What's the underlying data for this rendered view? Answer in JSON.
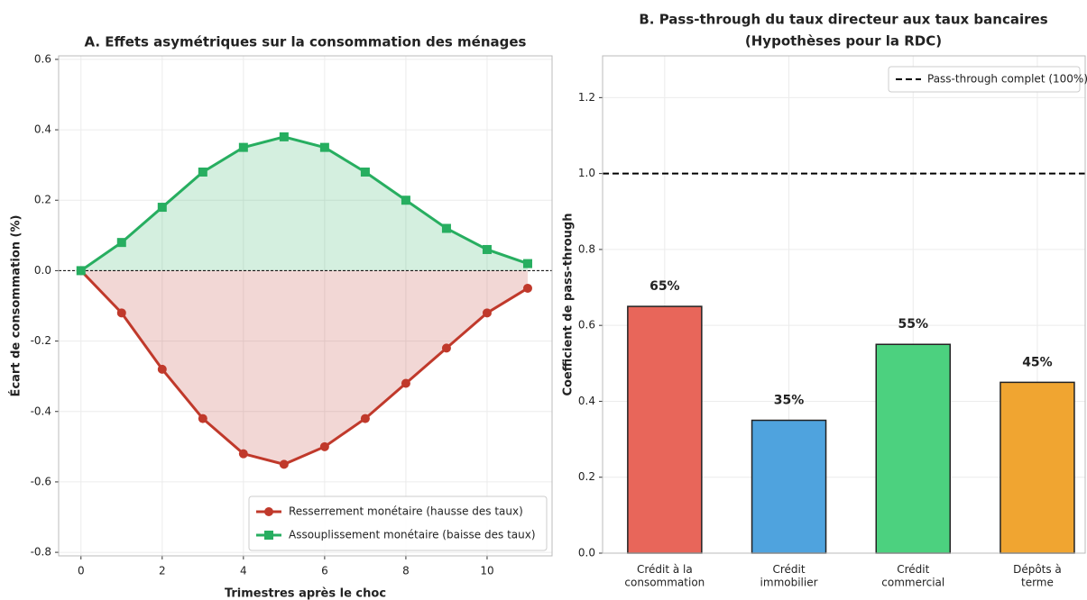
{
  "chart_data": [
    {
      "type": "line",
      "title": "A. Effets asymétriques sur la consommation des ménages",
      "x_label": "Trimestres après le choc",
      "y_label": "Écart de consommation (%)",
      "x": [
        0,
        1,
        2,
        3,
        4,
        5,
        6,
        7,
        8,
        9,
        10,
        11
      ],
      "series": [
        {
          "name": "Resserrement monétaire (hausse des taux)",
          "color": "#c0392b",
          "marker": "circle",
          "values": [
            0,
            -0.12,
            -0.28,
            -0.42,
            -0.52,
            -0.55,
            -0.5,
            -0.42,
            -0.32,
            -0.22,
            -0.12,
            -0.05
          ]
        },
        {
          "name": "Assouplissement monétaire (baisse des taux)",
          "color": "#27ae60",
          "marker": "square",
          "values": [
            0,
            0.08,
            0.18,
            0.28,
            0.35,
            0.38,
            0.35,
            0.28,
            0.2,
            0.12,
            0.06,
            0.02
          ]
        }
      ],
      "xlim": [
        -0.55,
        11.6
      ],
      "xticks": [
        0,
        2,
        4,
        6,
        8,
        10
      ],
      "ylim": [
        -0.81,
        0.61
      ],
      "yticks": [
        -0.8,
        -0.6,
        -0.4,
        -0.2,
        {
          "value": 0,
          "label": "0.0"
        },
        0.2,
        0.4,
        0.6
      ],
      "grid": true,
      "legend": "lower right"
    },
    {
      "type": "bar",
      "title": "B. Pass-through du taux directeur aux taux bancaires",
      "subtitle": "(Hypothèses pour la RDC)",
      "y_label": "Coefficient de pass-through",
      "categories": [
        "Crédit à la\nconsommation",
        "Crédit\nimmobilier",
        "Crédit\ncommercial",
        "Dépôts à\nterme"
      ],
      "values": [
        0.65,
        0.35,
        0.55,
        0.45
      ],
      "value_labels": [
        "65%",
        "35%",
        "55%",
        "45%"
      ],
      "colors": [
        "#e8665a",
        "#4fa3de",
        "#4cd17f",
        "#f0a531"
      ],
      "ylim": [
        0,
        1.31
      ],
      "yticks": [
        {
          "value": 0,
          "label": "0.0"
        },
        0.2,
        0.4,
        0.6,
        0.8,
        {
          "value": 1,
          "label": "1.0"
        },
        1.2
      ],
      "reference_line": {
        "value": 1,
        "label": "Pass-through complet (100%)"
      },
      "grid": true,
      "legend": "upper right"
    }
  ]
}
